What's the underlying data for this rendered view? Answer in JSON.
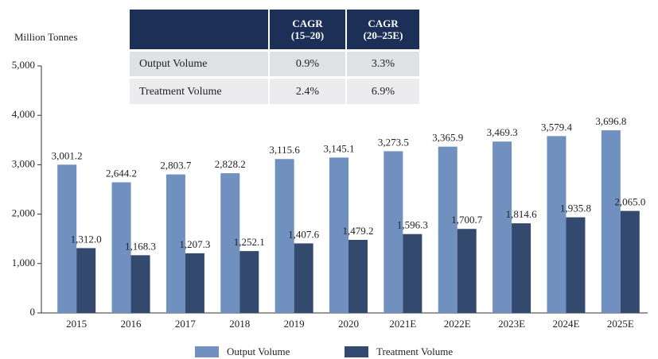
{
  "chart_data": {
    "type": "bar",
    "y_axis_label": "Million Tonnes",
    "categories": [
      "2015",
      "2016",
      "2017",
      "2018",
      "2019",
      "2020",
      "2021E",
      "2022E",
      "2023E",
      "2024E",
      "2025E"
    ],
    "series": [
      {
        "name": "Output Volume",
        "color": "#7090bf",
        "values": [
          3001.2,
          2644.2,
          2803.7,
          2828.2,
          3115.6,
          3145.1,
          3273.5,
          3365.9,
          3469.3,
          3579.4,
          3696.8
        ],
        "value_labels": [
          "3,001.2",
          "2,644.2",
          "2,803.7",
          "2,828.2",
          "3,115.6",
          "3,145.1",
          "3,273.5",
          "3,365.9",
          "3,469.3",
          "3,579.4",
          "3,696.8"
        ]
      },
      {
        "name": "Treatment Volume",
        "color": "#34496e",
        "values": [
          1312.0,
          1168.3,
          1207.3,
          1252.1,
          1407.6,
          1479.2,
          1596.3,
          1700.7,
          1814.6,
          1935.8,
          2065.0
        ],
        "value_labels": [
          "1,312.0",
          "1,168.3",
          "1,207.3",
          "1,252.1",
          "1,407.6",
          "1,479.2",
          "1,596.3",
          "1,700.7",
          "1,814.6",
          "1,935.8",
          "2,065.0"
        ]
      }
    ],
    "ylim": [
      0,
      5000
    ],
    "yticks": [
      0,
      {
        "value": 1000,
        "label": "1,000"
      },
      {
        "value": 2000,
        "label": "2,000"
      },
      {
        "value": 3000,
        "label": "3,000"
      },
      {
        "value": 4000,
        "label": "4,000"
      },
      {
        "value": 5000,
        "label": "5,000"
      }
    ],
    "grid": false,
    "legend": "bottom",
    "table": {
      "columns": [
        "CAGR\n(15–20)",
        "CAGR\n(20–25E)"
      ],
      "rows": [
        {
          "label": "Output Volume",
          "values": [
            "0.9%",
            "3.3%"
          ]
        },
        {
          "label": "Treatment Volume",
          "values": [
            "2.4%",
            "6.9%"
          ]
        }
      ]
    }
  }
}
